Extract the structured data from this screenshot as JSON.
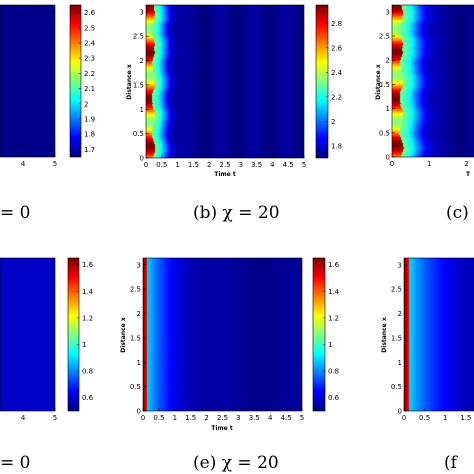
{
  "chart_data": [
    {
      "type": "heatmap",
      "panel": "a",
      "caption": "= 0",
      "xlabel": "",
      "ylabel": "",
      "xticks": [
        "4",
        "5"
      ],
      "yticks": [],
      "colorbar": {
        "ticks": [
          "2.6",
          "2.5",
          "2.4",
          "2.3",
          "2.2",
          "2.1",
          "2",
          "1.9",
          "1.8",
          "1.7"
        ],
        "range": [
          1.65,
          2.65
        ]
      },
      "field": {
        "kind": "flat",
        "value": 1.66
      }
    },
    {
      "type": "heatmap",
      "panel": "b",
      "caption": "(b) χ = 20",
      "xlabel": "Time t",
      "ylabel": "Distance x",
      "xticks": [
        "0",
        "0.5",
        "1",
        "1.5",
        "2",
        "2.5",
        "3",
        "3.5",
        "4",
        "4.5",
        "5"
      ],
      "yticks": [
        "0",
        "0.5",
        "1",
        "1.5",
        "2",
        "2.5",
        "3"
      ],
      "colorbar": {
        "ticks": [
          "2.8",
          "2.6",
          "2.4",
          "2.2",
          "2",
          "1.8"
        ],
        "range": [
          1.7,
          2.95
        ]
      },
      "field": {
        "kind": "pulse",
        "xlim": [
          0,
          5
        ],
        "ylim": [
          0,
          3.14
        ],
        "base": 1.72,
        "peak": 2.95,
        "front_end": 0.2,
        "decay": 0.55
      }
    },
    {
      "type": "heatmap",
      "panel": "c",
      "caption": "(c)",
      "xlabel": "T",
      "ylabel": "Distance x",
      "xticks": [
        "0",
        "1",
        "2"
      ],
      "yticks": [
        "0",
        "0.5",
        "1",
        "1.5",
        "2",
        "2.5",
        "3"
      ],
      "field": {
        "kind": "pulse",
        "xlim": [
          0,
          2.2
        ],
        "ylim": [
          0,
          3.14
        ],
        "base": 1.72,
        "peak": 2.95,
        "front_end": 0.22,
        "decay": 0.7
      }
    },
    {
      "type": "heatmap",
      "panel": "d",
      "caption": "= 0",
      "xlabel": "",
      "ylabel": "",
      "xticks": [
        "4",
        "5"
      ],
      "yticks": [],
      "colorbar": {
        "ticks": [
          "1.6",
          "1.4",
          "1.2",
          "1",
          "0.8",
          "0.6"
        ],
        "range": [
          0.5,
          1.65
        ]
      },
      "field": {
        "kind": "flat",
        "value": 0.58
      }
    },
    {
      "type": "heatmap",
      "panel": "e",
      "caption": "(e) χ = 20",
      "xlabel": "Time t",
      "ylabel": "Distance x",
      "xticks": [
        "0",
        "0.5",
        "1",
        "1.5",
        "2",
        "2.5",
        "3",
        "3.5",
        "4",
        "4.5",
        "5"
      ],
      "yticks": [
        "0",
        "0.5",
        "1",
        "1.5",
        "2",
        "2.5",
        "3"
      ],
      "colorbar": {
        "ticks": [
          "1.6",
          "1.4",
          "1.2",
          "1",
          "0.8",
          "0.6"
        ],
        "range": [
          0.5,
          1.65
        ]
      },
      "field": {
        "kind": "edge",
        "xlim": [
          0,
          5
        ],
        "ylim": [
          0,
          3.14
        ],
        "base": 0.52,
        "peak": 1.65,
        "width": 0.12,
        "tail": 0.85
      }
    },
    {
      "type": "heatmap",
      "panel": "f",
      "caption": "(f",
      "xlabel": "",
      "ylabel": "Distance x",
      "xticks": [
        "0",
        "0.5",
        "1",
        "1.5"
      ],
      "yticks": [
        "0",
        "0.5",
        "1",
        "1.5",
        "2",
        "2.5",
        "3"
      ],
      "field": {
        "kind": "edge",
        "xlim": [
          0,
          1.7
        ],
        "ylim": [
          0,
          3.14
        ],
        "base": 0.52,
        "peak": 1.65,
        "width": 0.12,
        "tail": 0.95
      }
    }
  ]
}
